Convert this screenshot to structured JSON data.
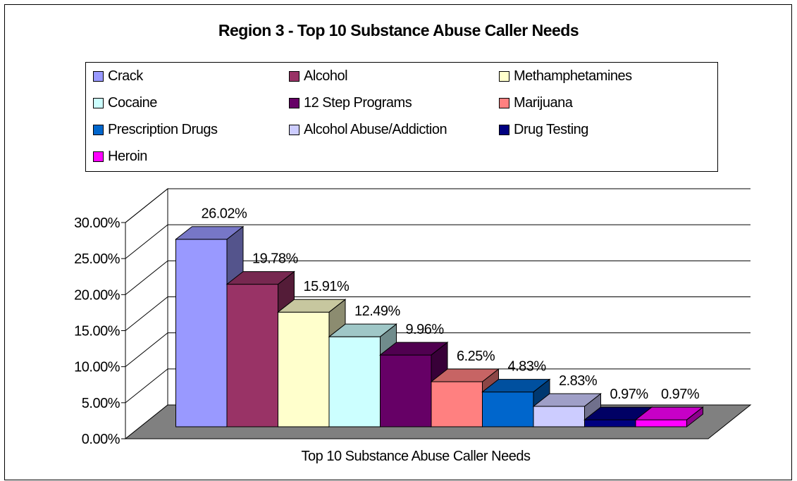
{
  "chart_data": {
    "type": "bar",
    "title": "Region 3 - Top 10 Substance Abuse Caller Needs",
    "xlabel": "Top 10 Substance Abuse Caller Needs",
    "ylabel": "",
    "ylim": [
      0,
      30
    ],
    "yticks": [
      "0.00%",
      "5.00%",
      "10.00%",
      "15.00%",
      "20.00%",
      "25.00%",
      "30.00%"
    ],
    "legend_position": "top",
    "grid": true,
    "categories": [
      "Top 10 Substance Abuse Caller Needs"
    ],
    "series": [
      {
        "name": "Crack",
        "value": 26.02,
        "label": "26.02%",
        "color": "#9999ff"
      },
      {
        "name": "Alcohol",
        "value": 19.78,
        "label": "19.78%",
        "color": "#993366"
      },
      {
        "name": "Methamphetamines",
        "value": 15.91,
        "label": "15.91%",
        "color": "#ffffcc"
      },
      {
        "name": "Cocaine",
        "value": 12.49,
        "label": "12.49%",
        "color": "#ccffff"
      },
      {
        "name": "12 Step Programs",
        "value": 9.96,
        "label": "9.96%",
        "color": "#660066"
      },
      {
        "name": "Marijuana",
        "value": 6.25,
        "label": "6.25%",
        "color": "#ff8080"
      },
      {
        "name": "Prescription Drugs",
        "value": 4.83,
        "label": "4.83%",
        "color": "#0066cc"
      },
      {
        "name": "Alcohol Abuse/Addiction",
        "value": 2.83,
        "label": "2.83%",
        "color": "#ccccff"
      },
      {
        "name": "Drug Testing",
        "value": 0.97,
        "label": "0.97%",
        "color": "#000080"
      },
      {
        "name": "Heroin",
        "value": 0.97,
        "label": "0.97%",
        "color": "#ff00ff"
      }
    ],
    "floor_color": "#808080"
  }
}
